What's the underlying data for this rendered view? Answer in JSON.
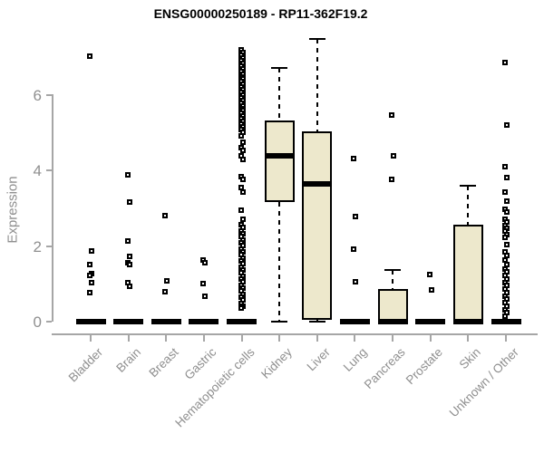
{
  "title": "ENSG00000250189 - RP11-362F19.2",
  "colors": {
    "box_fill": "#ede8cc",
    "box_border": "#000000",
    "axis_line": "#a6a6a6",
    "axis_text": "#8f8f8f",
    "title_text": "#000000"
  },
  "chart_data": {
    "type": "boxplot",
    "title": "ENSG00000250189 - RP11-362F19.2",
    "ylabel": "Expression",
    "xlabel": "",
    "ylim": [
      0,
      7.6
    ],
    "yticks": [
      0,
      2,
      4,
      6
    ],
    "grid": false,
    "legend": "none",
    "categories": [
      "Bladder",
      "Brain",
      "Breast",
      "Gastric",
      "Hematopoietic cells",
      "Kidney",
      "Liver",
      "Lung",
      "Pancreas",
      "Prostate",
      "Skin",
      "Unknown / Other"
    ],
    "series": [
      {
        "label": "Bladder",
        "lo": 0,
        "q1": 0,
        "median": 0,
        "q3": 0,
        "hi": 0,
        "outliers": [
          7.03,
          1.87,
          1.51,
          1.28,
          1.22,
          1.03,
          0.77
        ]
      },
      {
        "label": "Brain",
        "lo": 0,
        "q1": 0,
        "median": 0,
        "q3": 0,
        "hi": 0,
        "outliers": [
          3.88,
          3.16,
          2.14,
          1.73,
          1.57,
          1.5,
          1.02,
          0.94
        ]
      },
      {
        "label": "Breast",
        "lo": 0,
        "q1": 0,
        "median": 0,
        "q3": 0,
        "hi": 0,
        "outliers": [
          2.8,
          1.08,
          0.79
        ]
      },
      {
        "label": "Gastric",
        "lo": 0,
        "q1": 0,
        "median": 0,
        "q3": 0,
        "hi": 0,
        "outliers": [
          1.62,
          1.55,
          1.01,
          0.68
        ]
      },
      {
        "label": "Hematopoietic cells",
        "lo": 0,
        "q1": 0,
        "median": 0,
        "q3": 0,
        "hi": 0,
        "outliers": [
          7.19,
          7.12,
          7.05,
          6.98,
          6.91,
          6.84,
          6.77,
          6.7,
          6.63,
          6.56,
          6.49,
          6.42,
          6.35,
          6.28,
          6.21,
          6.14,
          6.07,
          6.0,
          5.93,
          5.86,
          5.79,
          5.72,
          5.65,
          5.58,
          5.51,
          5.44,
          5.37,
          5.3,
          5.23,
          5.16,
          5.09,
          5.02,
          4.92,
          4.75,
          4.6,
          4.53,
          4.39,
          4.29,
          3.84,
          3.76,
          3.55,
          3.43,
          2.95,
          2.71,
          2.57,
          2.49,
          2.41,
          2.33,
          2.25,
          2.17,
          2.09,
          2.01,
          1.93,
          1.85,
          1.77,
          1.69,
          1.61,
          1.53,
          1.45,
          1.37,
          1.29,
          1.21,
          1.13,
          1.05,
          0.97,
          0.89,
          0.81,
          0.73,
          0.65,
          0.57,
          0.49,
          0.41,
          0.35
        ]
      },
      {
        "label": "Kidney",
        "lo": 0,
        "q1": 3.17,
        "median": 4.39,
        "q3": 5.32,
        "hi": 6.71,
        "outliers": []
      },
      {
        "label": "Liver",
        "lo": 0,
        "q1": 0.05,
        "median": 3.65,
        "q3": 5.04,
        "hi": 7.48,
        "outliers": []
      },
      {
        "label": "Lung",
        "lo": 0,
        "q1": 0,
        "median": 0,
        "q3": 0,
        "hi": 0,
        "outliers": [
          4.32,
          2.78,
          1.92,
          1.06
        ]
      },
      {
        "label": "Pancreas",
        "lo": 0,
        "q1": 0,
        "median": 0,
        "q3": 0.86,
        "hi": 1.37,
        "outliers": [
          5.47,
          4.39,
          3.76
        ]
      },
      {
        "label": "Prostate",
        "lo": 0,
        "q1": 0,
        "median": 0,
        "q3": 0,
        "hi": 0,
        "outliers": [
          1.25,
          0.84
        ]
      },
      {
        "label": "Skin",
        "lo": 0,
        "q1": 0,
        "median": 0,
        "q3": 2.57,
        "hi": 3.6,
        "outliers": []
      },
      {
        "label": "Unknown / Other",
        "lo": 0,
        "q1": 0,
        "median": 0,
        "q3": 0,
        "hi": 0,
        "outliers": [
          6.86,
          5.2,
          4.1,
          3.81,
          3.43,
          3.19,
          2.98,
          2.9,
          2.71,
          2.63,
          2.55,
          2.47,
          2.39,
          2.31,
          2.23,
          2.04,
          1.85,
          1.76,
          1.64,
          1.52,
          1.4,
          1.31,
          1.22,
          1.13,
          1.04,
          0.95,
          0.86,
          0.77,
          0.68,
          0.59,
          0.5,
          0.41,
          0.32,
          0.23,
          0.14
        ]
      }
    ]
  }
}
